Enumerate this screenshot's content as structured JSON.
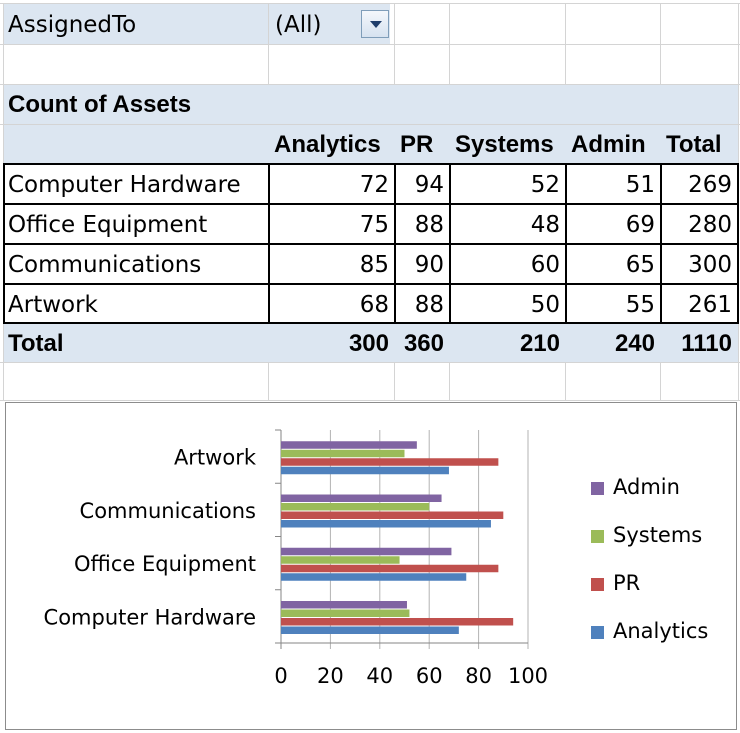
{
  "filter": {
    "field": "AssignedTo",
    "value": "(All)"
  },
  "pivot": {
    "title": "Count of Assets",
    "columns": [
      "Analytics",
      "PR",
      "Systems",
      "Admin",
      "Total"
    ],
    "rows": [
      {
        "label": "Computer Hardware",
        "values": [
          "72",
          "94",
          "52",
          "51",
          "269"
        ]
      },
      {
        "label": "Office Equipment",
        "values": [
          "75",
          "88",
          "48",
          "69",
          "280"
        ]
      },
      {
        "label": "Communications",
        "values": [
          "85",
          "90",
          "60",
          "65",
          "300"
        ]
      },
      {
        "label": "Artwork",
        "values": [
          "68",
          "88",
          "50",
          "55",
          "261"
        ]
      }
    ],
    "total": {
      "label": "Total",
      "values": [
        "300",
        "360",
        "210",
        "240",
        "1110"
      ]
    }
  },
  "chart_data": {
    "type": "bar",
    "orientation": "horizontal",
    "categories": [
      "Computer Hardware",
      "Office Equipment",
      "Communications",
      "Artwork"
    ],
    "series": [
      {
        "name": "Analytics",
        "values": [
          72,
          75,
          85,
          68
        ],
        "color": "#4f81bd"
      },
      {
        "name": "PR",
        "values": [
          94,
          88,
          90,
          88
        ],
        "color": "#c0504d"
      },
      {
        "name": "Systems",
        "values": [
          52,
          48,
          60,
          50
        ],
        "color": "#9bbb59"
      },
      {
        "name": "Admin",
        "values": [
          51,
          69,
          65,
          55
        ],
        "color": "#8064a2"
      }
    ],
    "xlim": [
      0,
      100
    ],
    "xticks": [
      "0",
      "20",
      "40",
      "60",
      "80",
      "100"
    ],
    "grid": true,
    "legend": "right",
    "legend_order": [
      "Admin",
      "Systems",
      "PR",
      "Analytics"
    ],
    "title": "",
    "xlabel": "",
    "ylabel": ""
  }
}
